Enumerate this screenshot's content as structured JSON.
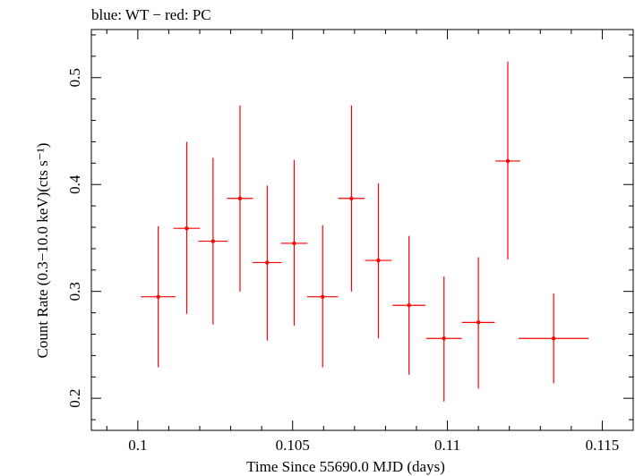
{
  "chart_data": {
    "type": "scatter",
    "title": "blue: WT − red: PC",
    "xlabel": "Time Since 55690.0 MJD (days)",
    "ylabel": "Count Rate (0.3−10.0 keV)(cts s⁻¹)",
    "xlim": [
      0.0985,
      0.116
    ],
    "ylim": [
      0.17,
      0.545
    ],
    "xticks": [
      0.1,
      0.105,
      0.11,
      0.115
    ],
    "xtick_labels": [
      "0.1",
      "0.105",
      "0.11",
      "0.115"
    ],
    "yticks": [
      0.2,
      0.3,
      0.4,
      0.5
    ],
    "ytick_labels": [
      "0.2",
      "0.3",
      "0.4",
      "0.5"
    ],
    "grid": false,
    "color": "#ff0000",
    "points": [
      {
        "x": 0.10066,
        "xerr_lo": 0.00056,
        "xerr_hi": 0.00056,
        "y": 0.295,
        "y_lo": 0.229,
        "y_hi": 0.361
      },
      {
        "x": 0.10158,
        "xerr_lo": 0.00043,
        "xerr_hi": 0.00043,
        "y": 0.359,
        "y_lo": 0.279,
        "y_hi": 0.44
      },
      {
        "x": 0.10243,
        "xerr_lo": 0.00047,
        "xerr_hi": 0.00047,
        "y": 0.347,
        "y_lo": 0.269,
        "y_hi": 0.425
      },
      {
        "x": 0.1033,
        "xerr_lo": 0.00042,
        "xerr_hi": 0.00042,
        "y": 0.387,
        "y_lo": 0.3,
        "y_hi": 0.474
      },
      {
        "x": 0.10418,
        "xerr_lo": 0.00047,
        "xerr_hi": 0.00047,
        "y": 0.327,
        "y_lo": 0.254,
        "y_hi": 0.399
      },
      {
        "x": 0.10505,
        "xerr_lo": 0.00043,
        "xerr_hi": 0.00043,
        "y": 0.345,
        "y_lo": 0.268,
        "y_hi": 0.423
      },
      {
        "x": 0.10597,
        "xerr_lo": 0.0005,
        "xerr_hi": 0.0005,
        "y": 0.295,
        "y_lo": 0.229,
        "y_hi": 0.362
      },
      {
        "x": 0.1069,
        "xerr_lo": 0.00043,
        "xerr_hi": 0.00043,
        "y": 0.387,
        "y_lo": 0.3,
        "y_hi": 0.474
      },
      {
        "x": 0.10777,
        "xerr_lo": 0.00043,
        "xerr_hi": 0.00043,
        "y": 0.329,
        "y_lo": 0.256,
        "y_hi": 0.401
      },
      {
        "x": 0.10876,
        "xerr_lo": 0.00053,
        "xerr_hi": 0.00053,
        "y": 0.287,
        "y_lo": 0.222,
        "y_hi": 0.352
      },
      {
        "x": 0.10989,
        "xerr_lo": 0.00057,
        "xerr_hi": 0.00057,
        "y": 0.256,
        "y_lo": 0.197,
        "y_hi": 0.314
      },
      {
        "x": 0.111,
        "xerr_lo": 0.00053,
        "xerr_hi": 0.00053,
        "y": 0.271,
        "y_lo": 0.209,
        "y_hi": 0.332
      },
      {
        "x": 0.11195,
        "xerr_lo": 0.0004,
        "xerr_hi": 0.0004,
        "y": 0.422,
        "y_lo": 0.33,
        "y_hi": 0.515
      },
      {
        "x": 0.11343,
        "xerr_lo": 0.00113,
        "xerr_hi": 0.00113,
        "y": 0.256,
        "y_lo": 0.214,
        "y_hi": 0.298
      }
    ]
  }
}
